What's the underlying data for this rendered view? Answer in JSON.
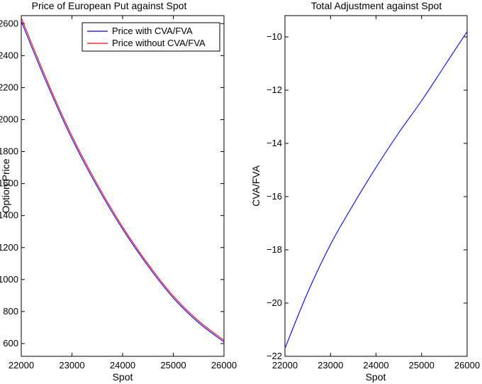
{
  "chart_data": [
    {
      "type": "line",
      "title": "Price of European Put against Spot",
      "xlabel": "Spot",
      "ylabel": "Option Price",
      "xlim": [
        22000,
        26000
      ],
      "ylim": [
        520,
        2650
      ],
      "xticks": [
        22000,
        23000,
        24000,
        25000,
        26000
      ],
      "yticks": [
        600,
        800,
        1000,
        1200,
        1400,
        1600,
        1800,
        2000,
        2200,
        2400,
        2600
      ],
      "xtick_labels": [
        "22000",
        "23000",
        "24000",
        "25000",
        "26000"
      ],
      "ytick_labels": [
        "600",
        "800",
        "1000",
        "1200",
        "1400",
        "1600",
        "1800",
        "2000",
        "2200",
        "2400",
        "2600"
      ],
      "legend_position": "top-right",
      "grid": false,
      "x": [
        22000,
        22500,
        23000,
        23500,
        24000,
        24500,
        25000,
        25500,
        26000
      ],
      "series": [
        {
          "name": "Price with CVA/FVA",
          "color": "#0000ff",
          "values": [
            2615,
            2230,
            1880,
            1580,
            1315,
            1085,
            885,
            730,
            610
          ]
        },
        {
          "name": "Price without CVA/FVA",
          "color": "#ff0000",
          "values": [
            2637,
            2250,
            1898,
            1596,
            1329,
            1098,
            897,
            741,
            620
          ]
        }
      ]
    },
    {
      "type": "line",
      "title": "Total Adjustment against Spot",
      "xlabel": "Spot",
      "ylabel": "CVA/FVA",
      "xlim": [
        22000,
        26000
      ],
      "ylim": [
        -22,
        -9.2
      ],
      "xticks": [
        22000,
        23000,
        24000,
        25000,
        26000
      ],
      "yticks": [
        -22,
        -20,
        -18,
        -16,
        -14,
        -12,
        -10
      ],
      "xtick_labels": [
        "22000",
        "23000",
        "24000",
        "25000",
        "26000"
      ],
      "ytick_labels": [
        "−22",
        "−20",
        "−18",
        "−16",
        "−14",
        "−12",
        "−10"
      ],
      "grid": false,
      "x": [
        22000,
        22500,
        23000,
        23500,
        24000,
        24500,
        25000,
        25500,
        26000
      ],
      "series": [
        {
          "color": "#0000ff",
          "values": [
            -21.7,
            -19.6,
            -17.8,
            -16.3,
            -14.9,
            -13.6,
            -12.4,
            -11.1,
            -9.8
          ]
        }
      ]
    }
  ]
}
